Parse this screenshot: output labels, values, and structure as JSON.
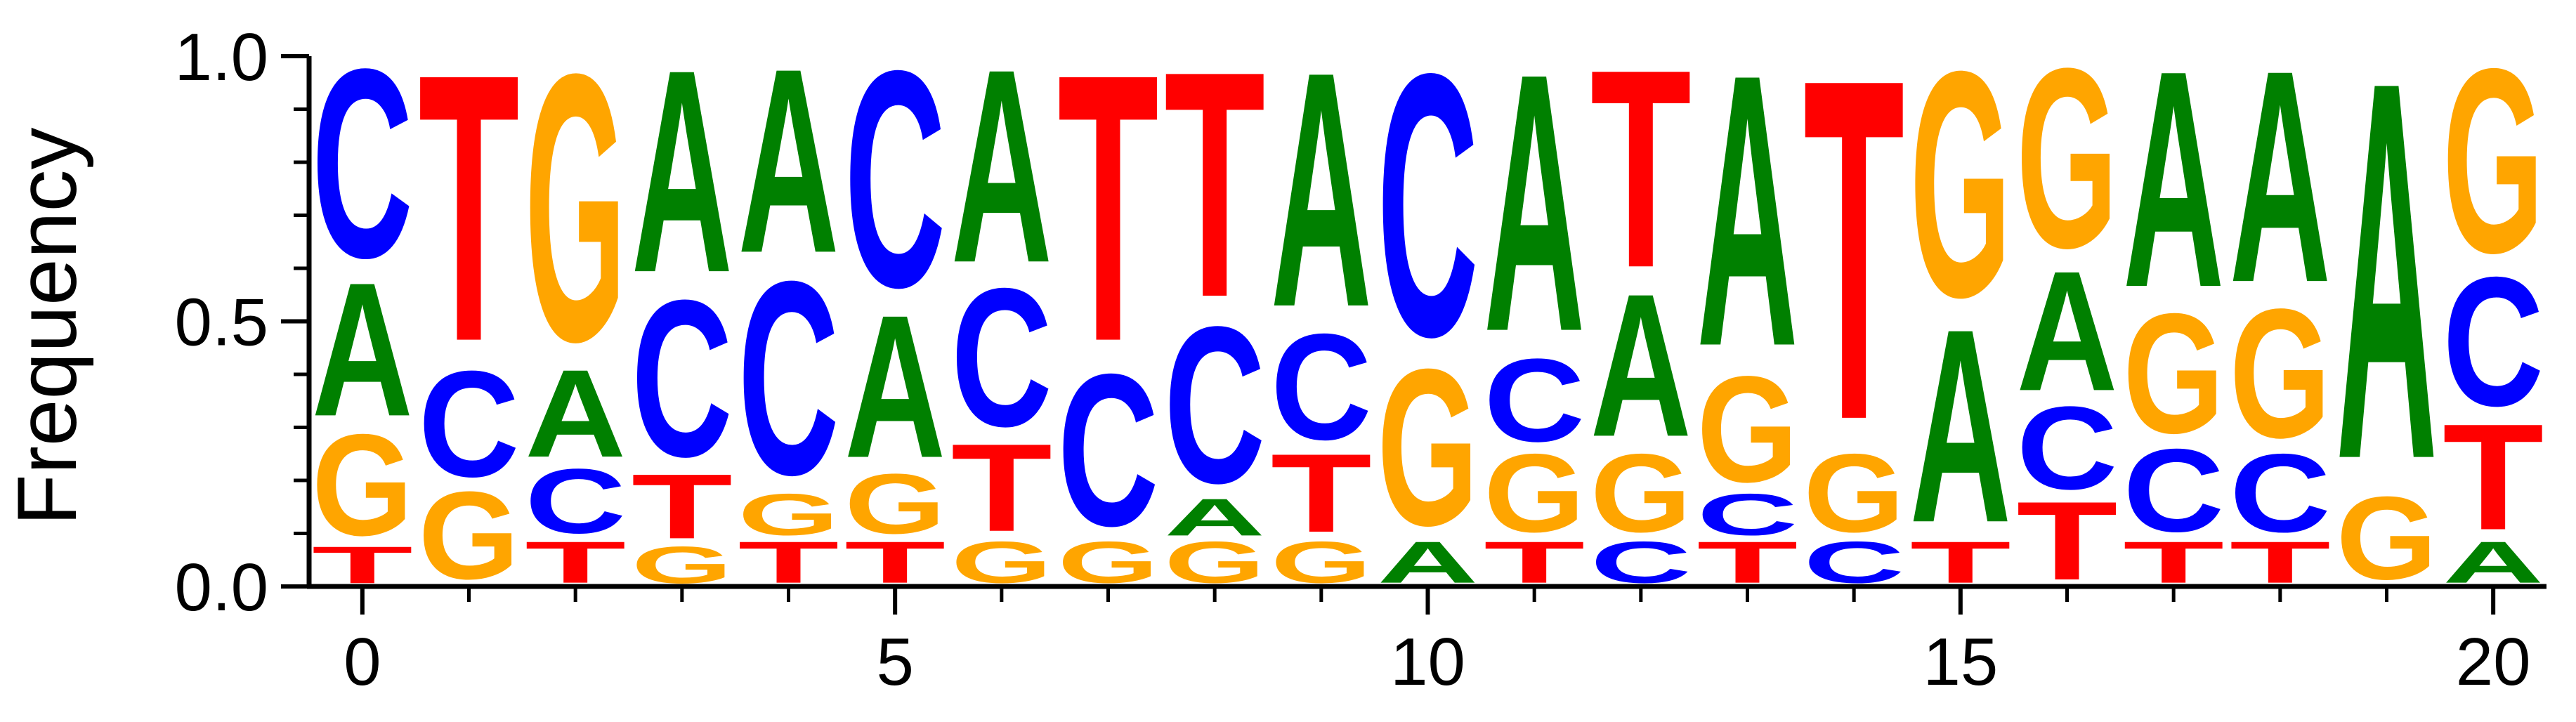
{
  "chart_data": {
    "type": "sequence-logo",
    "ylabel": "Frequency",
    "xlabel": "",
    "title": "",
    "ylim": [
      0,
      1
    ],
    "xlim": [
      -0.5,
      20.5
    ],
    "y_ticks": [
      "0.0",
      "0.5",
      "1.0"
    ],
    "y_tick_values": [
      0,
      0.5,
      1
    ],
    "y_minor_tick_values": [
      0.1,
      0.2,
      0.3,
      0.4,
      0.6,
      0.7,
      0.8,
      0.9
    ],
    "x_ticks": [
      "0",
      "5",
      "10",
      "15",
      "20"
    ],
    "x_tick_values": [
      0,
      5,
      10,
      15,
      20
    ],
    "x_minor_tick_values": [
      1,
      2,
      3,
      4,
      6,
      7,
      8,
      9,
      11,
      12,
      13,
      14,
      16,
      17,
      18,
      19
    ],
    "colors": {
      "A": "#008000",
      "C": "#0000ff",
      "G": "#ffa500",
      "T": "#ff0000"
    },
    "positions": [
      {
        "pos": 0,
        "stack": [
          [
            "T",
            0.08
          ],
          [
            "G",
            0.22
          ],
          [
            "A",
            0.29
          ],
          [
            "C",
            0.41
          ]
        ]
      },
      {
        "pos": 1,
        "stack": [
          [
            "G",
            0.19
          ],
          [
            "C",
            0.23
          ],
          [
            "T",
            0.58
          ]
        ]
      },
      {
        "pos": 2,
        "stack": [
          [
            "T",
            0.09
          ],
          [
            "C",
            0.14
          ],
          [
            "A",
            0.19
          ],
          [
            "G",
            0.58
          ]
        ]
      },
      {
        "pos": 3,
        "stack": [
          [
            "G",
            0.08
          ],
          [
            "T",
            0.14
          ],
          [
            "C",
            0.34
          ],
          [
            "A",
            0.44
          ]
        ]
      },
      {
        "pos": 4,
        "stack": [
          [
            "T",
            0.09
          ],
          [
            "G",
            0.09
          ],
          [
            "C",
            0.42
          ],
          [
            "A",
            0.4
          ]
        ]
      },
      {
        "pos": 5,
        "stack": [
          [
            "T",
            0.09
          ],
          [
            "G",
            0.13
          ],
          [
            "A",
            0.31
          ],
          [
            "C",
            0.47
          ]
        ]
      },
      {
        "pos": 6,
        "stack": [
          [
            "G",
            0.09
          ],
          [
            "T",
            0.19
          ],
          [
            "C",
            0.3
          ],
          [
            "A",
            0.42
          ]
        ]
      },
      {
        "pos": 7,
        "stack": [
          [
            "G",
            0.09
          ],
          [
            "C",
            0.33
          ],
          [
            "T",
            0.58
          ]
        ]
      },
      {
        "pos": 8,
        "stack": [
          [
            "G",
            0.09
          ],
          [
            "A",
            0.08
          ],
          [
            "C",
            0.34
          ],
          [
            "T",
            0.49
          ]
        ]
      },
      {
        "pos": 9,
        "stack": [
          [
            "G",
            0.09
          ],
          [
            "T",
            0.17
          ],
          [
            "C",
            0.23
          ],
          [
            "A",
            0.51
          ]
        ]
      },
      {
        "pos": 10,
        "stack": [
          [
            "A",
            0.09
          ],
          [
            "G",
            0.34
          ],
          [
            "C",
            0.57
          ]
        ]
      },
      {
        "pos": 11,
        "stack": [
          [
            "T",
            0.09
          ],
          [
            "G",
            0.17
          ],
          [
            "C",
            0.18
          ],
          [
            "A",
            0.56
          ]
        ]
      },
      {
        "pos": 12,
        "stack": [
          [
            "C",
            0.09
          ],
          [
            "G",
            0.17
          ],
          [
            "A",
            0.31
          ],
          [
            "T",
            0.43
          ]
        ]
      },
      {
        "pos": 13,
        "stack": [
          [
            "T",
            0.09
          ],
          [
            "C",
            0.09
          ],
          [
            "G",
            0.23
          ],
          [
            "A",
            0.59
          ]
        ]
      },
      {
        "pos": 14,
        "stack": [
          [
            "C",
            0.09
          ],
          [
            "G",
            0.17
          ],
          [
            "T",
            0.74
          ]
        ]
      },
      {
        "pos": 15,
        "stack": [
          [
            "T",
            0.09
          ],
          [
            "A",
            0.42
          ],
          [
            "G",
            0.49
          ]
        ]
      },
      {
        "pos": 16,
        "stack": [
          [
            "T",
            0.17
          ],
          [
            "C",
            0.18
          ],
          [
            "A",
            0.26
          ],
          [
            "G",
            0.39
          ]
        ]
      },
      {
        "pos": 17,
        "stack": [
          [
            "T",
            0.09
          ],
          [
            "C",
            0.18
          ],
          [
            "G",
            0.26
          ],
          [
            "A",
            0.47
          ]
        ]
      },
      {
        "pos": 18,
        "stack": [
          [
            "T",
            0.09
          ],
          [
            "C",
            0.17
          ],
          [
            "G",
            0.28
          ],
          [
            "A",
            0.46
          ]
        ]
      },
      {
        "pos": 19,
        "stack": [
          [
            "G",
            0.18
          ],
          [
            "A",
            0.82
          ]
        ]
      },
      {
        "pos": 20,
        "stack": [
          [
            "A",
            0.09
          ],
          [
            "T",
            0.23
          ],
          [
            "C",
            0.28
          ],
          [
            "G",
            0.4
          ]
        ]
      }
    ]
  }
}
